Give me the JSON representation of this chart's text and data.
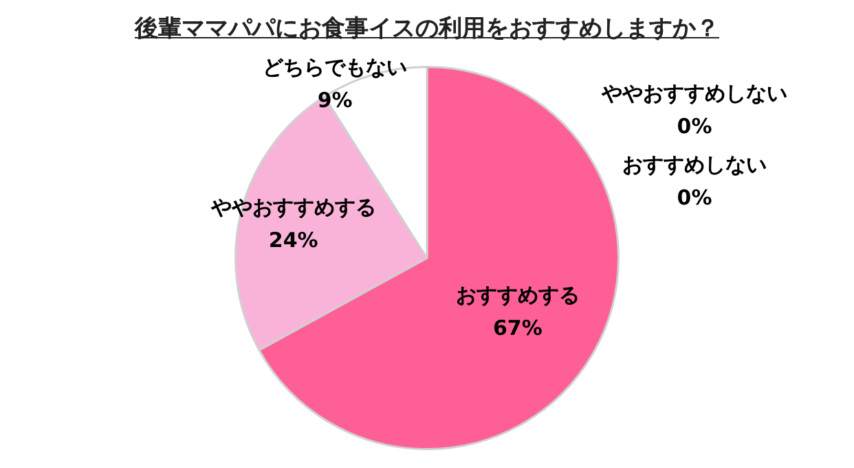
{
  "chart_data": {
    "type": "pie",
    "title": "後輩ママパパにお食事イスの利用をおすすめしますか？",
    "categories": [
      "おすすめする",
      "ややおすすめする",
      "どちらでもない",
      "ややおすすめしない",
      "おすすめしない"
    ],
    "values": [
      67,
      24,
      9,
      0,
      0
    ],
    "value_labels": [
      "67%",
      "24%",
      "9%",
      "0%",
      "0%"
    ],
    "colors": [
      "#ff5f97",
      "#f9b3d9",
      "#ffffff",
      "#c9c9c9",
      "#a6a6a6"
    ],
    "legend": false
  }
}
